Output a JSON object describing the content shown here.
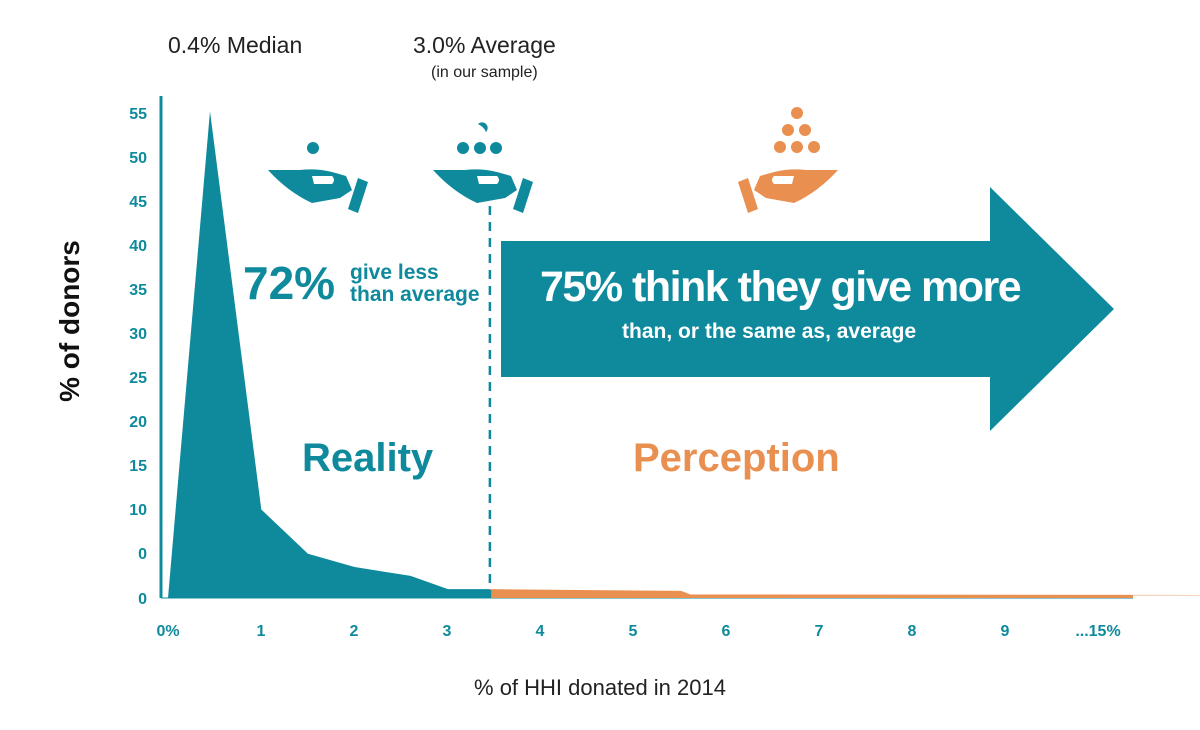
{
  "chart_data": {
    "type": "area",
    "title": "",
    "xlabel": "% of HHI donated in 2014",
    "ylabel": "% of donors",
    "x_tick_labels": [
      "0%",
      "1",
      "2",
      "3",
      "4",
      "5",
      "6",
      "7",
      "8",
      "9",
      "...15%"
    ],
    "y_tick_labels": [
      "0",
      "0",
      "10",
      "15",
      "20",
      "25",
      "30",
      "35",
      "40",
      "45",
      "50",
      "55"
    ],
    "series": [
      {
        "name": "Reality",
        "color": "#0e8a9c",
        "points": [
          [
            0,
            0
          ],
          [
            0.45,
            55
          ],
          [
            1.0,
            10
          ],
          [
            1.5,
            5
          ],
          [
            2.0,
            3.5
          ],
          [
            2.6,
            2.5
          ],
          [
            3.0,
            1
          ],
          [
            3.45,
            1
          ]
        ]
      },
      {
        "name": "Perception",
        "color": "#e98f50",
        "points": [
          [
            3.45,
            1
          ],
          [
            5.5,
            0.8
          ],
          [
            5.6,
            0.4
          ],
          [
            15,
            0.3
          ]
        ]
      }
    ],
    "reference_lines": [
      {
        "x": 3.45,
        "style": "dashed",
        "label": "3.0% Average",
        "sublabel": "(in our sample)"
      }
    ],
    "annotations": {
      "median": "0.4% Median",
      "average": "3.0% Average",
      "average_sub": "(in our sample)",
      "left_pct": "72%",
      "left_text": "give less than average",
      "arrow_main": "75% think they give more",
      "arrow_sub": "than, or the same as, average",
      "reality": "Reality",
      "perception": "Perception"
    }
  },
  "icons": [
    {
      "name": "hand-one-coin-icon",
      "color": "#0e8a9c"
    },
    {
      "name": "hand-three-coins-icon",
      "color": "#0e8a9c"
    },
    {
      "name": "hand-coin-pyramid-icon",
      "color": "#e98f50"
    }
  ],
  "colors": {
    "teal": "#0e8a9c",
    "orange": "#e98f50"
  }
}
